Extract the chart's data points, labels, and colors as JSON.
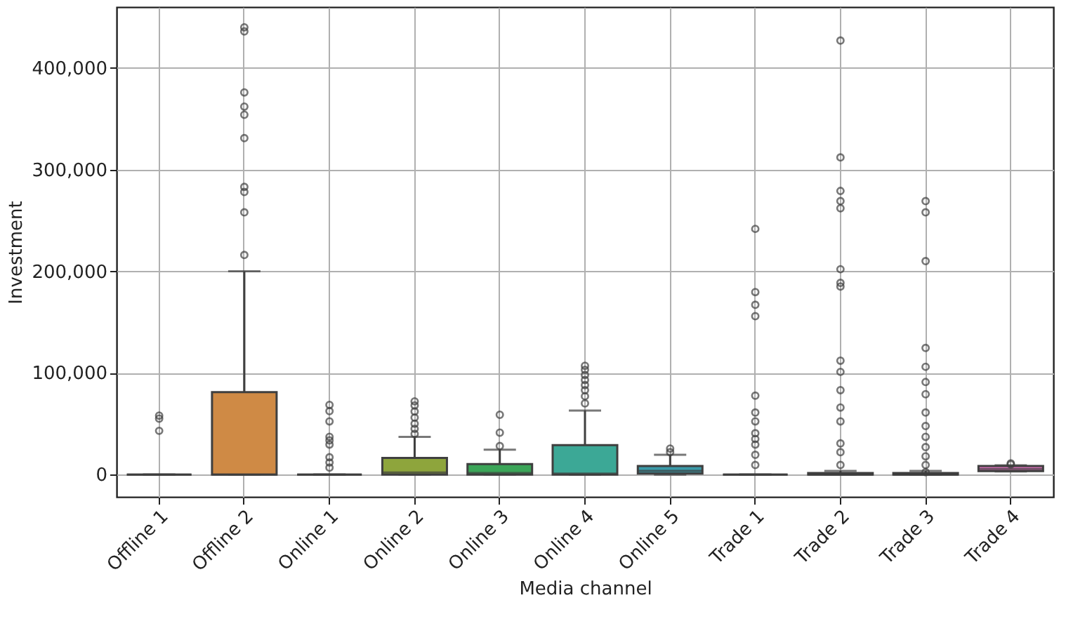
{
  "chart_data": {
    "type": "box",
    "xlabel": "Media channel",
    "ylabel": "Investment",
    "categories": [
      "Offline 1",
      "Offline 2",
      "Online 1",
      "Online 2",
      "Online 3",
      "Online 4",
      "Online 5",
      "Trade 1",
      "Trade 2",
      "Trade 3",
      "Trade 4"
    ],
    "colors": [
      null,
      "#cf8a45",
      null,
      "#8ea53c",
      "#3ba558",
      "#3ca896",
      "#3a9aa8",
      null,
      "#8a94e8",
      "#d07fe8",
      "#e075c0"
    ],
    "boxes": [
      {
        "low": 0,
        "q1": 0,
        "median": 0,
        "q3": 0,
        "high": 0,
        "outliers": [
          58000,
          55000,
          43000
        ]
      },
      {
        "low": 0,
        "q1": 0,
        "median": 0,
        "q3": 81000,
        "high": 200000,
        "outliers": [
          440000,
          436000,
          376000,
          362000,
          354000,
          331000,
          283000,
          278000,
          258000,
          216000
        ]
      },
      {
        "low": 0,
        "q1": 0,
        "median": 0,
        "q3": 0,
        "high": 0,
        "outliers": [
          68500,
          62400,
          52300,
          37100,
          33600,
          29500,
          17000,
          11800,
          6800
        ]
      },
      {
        "low": 0,
        "q1": 0,
        "median": 2000,
        "q3": 16400,
        "high": 37100,
        "outliers": [
          72000,
          68000,
          62000,
          56000,
          50000,
          45000,
          40000
        ]
      },
      {
        "low": 0,
        "q1": 0,
        "median": 1500,
        "q3": 10300,
        "high": 24500,
        "outliers": [
          58800,
          41200,
          28000
        ]
      },
      {
        "low": 0,
        "q1": 0,
        "median": 1000,
        "q3": 29000,
        "high": 62900,
        "outliers": [
          107000,
          103000,
          98000,
          93000,
          88000,
          83000,
          77000,
          70000
        ]
      },
      {
        "low": 0,
        "q1": 1000,
        "median": 3500,
        "q3": 8300,
        "high": 19400,
        "outliers": [
          25500,
          22000
        ]
      },
      {
        "low": 0,
        "q1": 0,
        "median": 0,
        "q3": 0,
        "high": 0,
        "outliers": [
          241700,
          179500,
          167000,
          155800,
          77600,
          61000,
          52300,
          40600,
          35000,
          29500,
          19400,
          9400
        ]
      },
      {
        "low": 0,
        "q1": 0,
        "median": 0,
        "q3": 1500,
        "high": 3500,
        "outliers": [
          427000,
          312000,
          279000,
          269000,
          262000,
          202000,
          188600,
          185000,
          112000,
          101000,
          83000,
          65900,
          52300,
          30600,
          22000,
          9400
        ]
      },
      {
        "low": 0,
        "q1": 0,
        "median": 0,
        "q3": 1500,
        "high": 3500,
        "outliers": [
          269000,
          258000,
          210000,
          124500,
          106000,
          91000,
          79000,
          61000,
          47700,
          37100,
          27000,
          17900,
          9400,
          2300
        ]
      },
      {
        "low": 3000,
        "q1": 3300,
        "median": 5500,
        "q3": 8300,
        "high": 9000,
        "outliers": [
          10000,
          11000
        ]
      }
    ],
    "ylim": [
      -22000,
      460000
    ],
    "yticks": [
      {
        "value": 0,
        "label": "0"
      },
      {
        "value": 100000,
        "label": "100,000"
      },
      {
        "value": 200000,
        "label": "200,000"
      },
      {
        "value": 300000,
        "label": "300,000"
      },
      {
        "value": 400000,
        "label": "400,000"
      }
    ],
    "grid": true
  }
}
